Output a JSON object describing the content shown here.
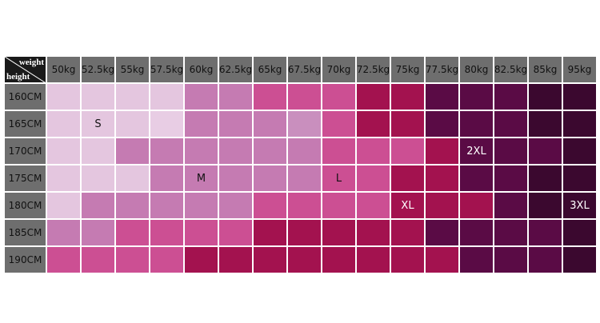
{
  "header": {
    "corner_top": "weight",
    "corner_bottom": "height",
    "weights": [
      "50kg",
      "52.5kg",
      "55kg",
      "57.5kg",
      "60kg",
      "62.5kg",
      "65kg",
      "67.5kg",
      "70kg",
      "72.5kg",
      "75kg",
      "77.5kg",
      "80kg",
      "82.5kg",
      "85kg",
      "95kg"
    ]
  },
  "table": {
    "rows": [
      {
        "height": "160CM",
        "cells": [
          null,
          null,
          null,
          null,
          null,
          null,
          null,
          null,
          null,
          null,
          null,
          null,
          null,
          null,
          null,
          null
        ],
        "colors": [
          "#e4c6df",
          "#e4c6df",
          "#e4c6df",
          "#e4c6df",
          "#c57bb2",
          "#c57bb2",
          "#cc4f93",
          "#cc4f93",
          "#cc4f93",
          "#a3124f",
          "#a3124f",
          "#5a0b45",
          "#5a0b45",
          "#5a0b45",
          "#3b082f",
          "#3b082f"
        ]
      },
      {
        "height": "165CM",
        "cells": [
          null,
          "S",
          null,
          null,
          null,
          null,
          null,
          null,
          null,
          null,
          null,
          null,
          null,
          null,
          null,
          null
        ],
        "colors": [
          "#e4c6df",
          "#e4c6df",
          "#e4c6df",
          "#e8cde4",
          "#c57bb2",
          "#c57bb2",
          "#c57bb2",
          "#c98fbe",
          "#cc4f93",
          "#a3124f",
          "#a3124f",
          "#5a0b45",
          "#5a0b45",
          "#5a0b45",
          "#3b082f",
          "#3b082f"
        ]
      },
      {
        "height": "170CM",
        "cells": [
          null,
          null,
          null,
          null,
          null,
          null,
          null,
          null,
          null,
          null,
          null,
          null,
          "2XL",
          null,
          null,
          null
        ],
        "colors": [
          "#e4c6df",
          "#e4c6df",
          "#c57bb2",
          "#c57bb2",
          "#c57bb2",
          "#c57bb2",
          "#c57bb2",
          "#c57bb2",
          "#cc4f93",
          "#cc4f93",
          "#cc4f93",
          "#a3124f",
          "#5a0b45",
          "#5a0b45",
          "#5a0b45",
          "#3b082f"
        ]
      },
      {
        "height": "175CM",
        "cells": [
          null,
          null,
          null,
          null,
          "M",
          null,
          null,
          null,
          "L",
          null,
          null,
          null,
          null,
          null,
          null,
          null
        ],
        "colors": [
          "#e4c6df",
          "#e4c6df",
          "#e4c6df",
          "#c57bb2",
          "#c57bb2",
          "#c57bb2",
          "#c57bb2",
          "#c57bb2",
          "#cc4f93",
          "#cc4f93",
          "#a3124f",
          "#a3124f",
          "#5a0b45",
          "#5a0b45",
          "#3b082f",
          "#3b082f"
        ]
      },
      {
        "height": "180CM",
        "cells": [
          null,
          null,
          null,
          null,
          null,
          null,
          null,
          null,
          null,
          null,
          "XL",
          null,
          null,
          null,
          null,
          "3XL"
        ],
        "colors": [
          "#e4c6df",
          "#c57bb2",
          "#c57bb2",
          "#c57bb2",
          "#c57bb2",
          "#c57bb2",
          "#cc4f93",
          "#cc4f93",
          "#cc4f93",
          "#cc4f93",
          "#a3124f",
          "#a3124f",
          "#a3124f",
          "#5a0b45",
          "#3b082f",
          "#3b082f"
        ]
      },
      {
        "height": "185CM",
        "cells": [
          null,
          null,
          null,
          null,
          null,
          null,
          null,
          null,
          null,
          null,
          null,
          null,
          null,
          null,
          null,
          null
        ],
        "colors": [
          "#c57bb2",
          "#c57bb2",
          "#cc4f93",
          "#cc4f93",
          "#cc4f93",
          "#cc4f93",
          "#a3124f",
          "#a3124f",
          "#a3124f",
          "#a3124f",
          "#a3124f",
          "#5a0b45",
          "#5a0b45",
          "#5a0b45",
          "#5a0b45",
          "#3b082f"
        ]
      },
      {
        "height": "190CM",
        "cells": [
          null,
          null,
          null,
          null,
          null,
          null,
          null,
          null,
          null,
          null,
          null,
          null,
          null,
          null,
          null,
          null
        ],
        "colors": [
          "#cc4f93",
          "#cc4f93",
          "#cc4f93",
          "#cc4f93",
          "#a3124f",
          "#a3124f",
          "#a3124f",
          "#a3124f",
          "#a3124f",
          "#a3124f",
          "#a3124f",
          "#a3124f",
          "#5a0b45",
          "#5a0b45",
          "#5a0b45",
          "#3b082f"
        ]
      }
    ]
  }
}
